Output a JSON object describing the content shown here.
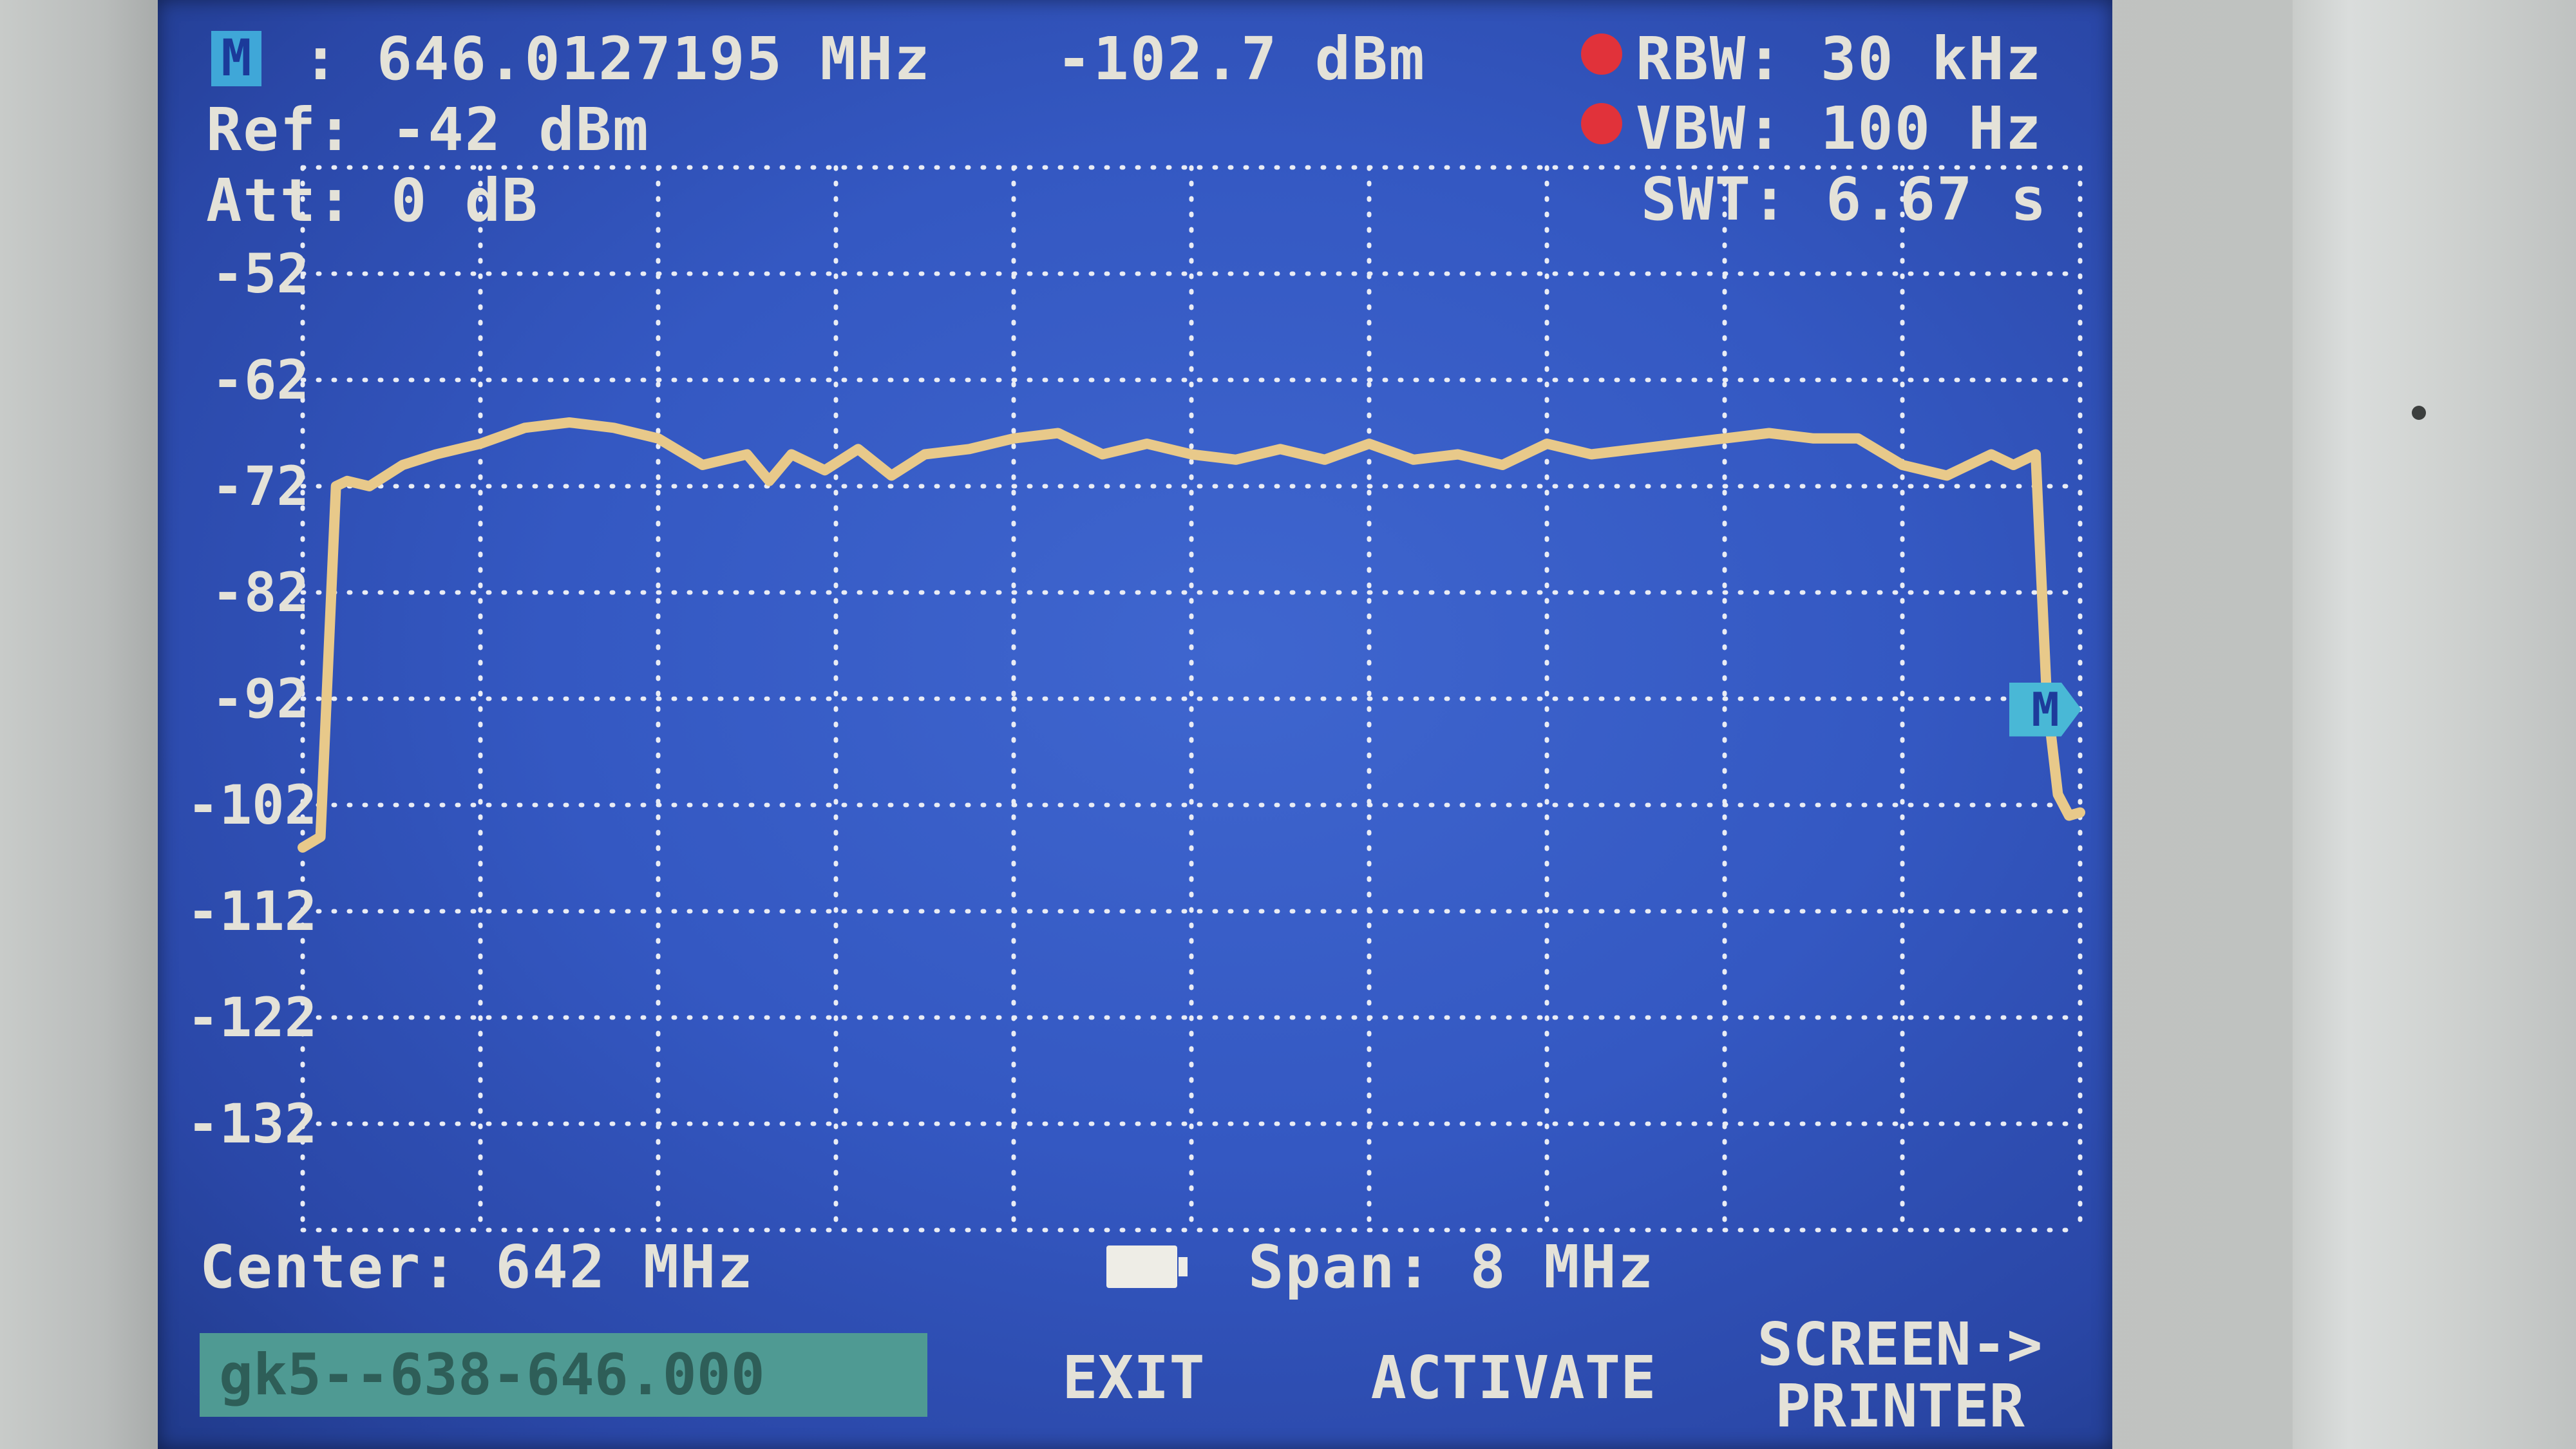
{
  "marker": {
    "badge": "M",
    "frequency": ": 646.0127195 MHz",
    "level": "-102.7 dBm",
    "flag": "M"
  },
  "settings": {
    "ref": "Ref: -42 dBm",
    "att": "Att: 0 dB",
    "rbw": "RBW: 30 kHz",
    "vbw": "VBW: 100 Hz",
    "swt": "SWT: 6.67 s",
    "center": "Center: 642 MHz",
    "span": "Span: 8 MHz"
  },
  "footer": {
    "dataset": "gk5--638-646.000",
    "exit": "EXIT",
    "activate": "ACTIVATE",
    "screen_line1": "SCREEN->",
    "screen_line2": "PRINTER"
  },
  "colors": {
    "screen_bg": "#3458c2",
    "trace": "#e8c98a",
    "grid": "#e9ecf5",
    "text": "#e4e2d8",
    "indicator_dot": "#e1323a",
    "dataset_bg": "#4f9a93"
  },
  "chart_data": {
    "type": "line",
    "title": "",
    "xlabel": "",
    "ylabel": "",
    "y_tick_labels": [
      "-52",
      "-62",
      "-72",
      "-82",
      "-92",
      "-102",
      "-112",
      "-122",
      "-132"
    ],
    "ylim": [
      -142,
      -42
    ],
    "xlim": [
      638,
      646
    ],
    "x_unit": "MHz",
    "y_unit": "dBm",
    "grid": true,
    "series": [
      {
        "x": [
          638.0,
          638.08,
          638.15,
          638.2,
          638.3,
          638.45,
          638.6,
          638.8,
          639.0,
          639.2,
          639.4,
          639.6,
          639.8,
          640.0,
          640.1,
          640.2,
          640.35,
          640.5,
          640.65,
          640.8,
          641.0,
          641.2,
          641.4,
          641.6,
          641.8,
          642.0,
          642.2,
          642.4,
          642.6,
          642.8,
          643.0,
          643.2,
          643.4,
          643.6,
          643.8,
          644.0,
          644.2,
          644.4,
          644.6,
          644.8,
          645.0,
          645.2,
          645.4,
          645.6,
          645.7,
          645.8,
          645.85,
          645.9,
          645.95,
          646.0
        ],
        "y": [
          -106,
          -105,
          -72,
          -71.5,
          -72,
          -70,
          -69,
          -68,
          -66.5,
          -66,
          -66.5,
          -67.5,
          -70,
          -69,
          -71.5,
          -69,
          -70.5,
          -68.5,
          -71,
          -69,
          -68.5,
          -67.5,
          -67,
          -69,
          -68,
          -69,
          -69.5,
          -68.5,
          -69.5,
          -68,
          -69.5,
          -69,
          -70,
          -68,
          -69,
          -68.5,
          -68,
          -67.5,
          -67,
          -67.5,
          -67.5,
          -70,
          -71,
          -69,
          -70,
          -69,
          -92,
          -101,
          -103,
          -102.7
        ]
      }
    ]
  }
}
